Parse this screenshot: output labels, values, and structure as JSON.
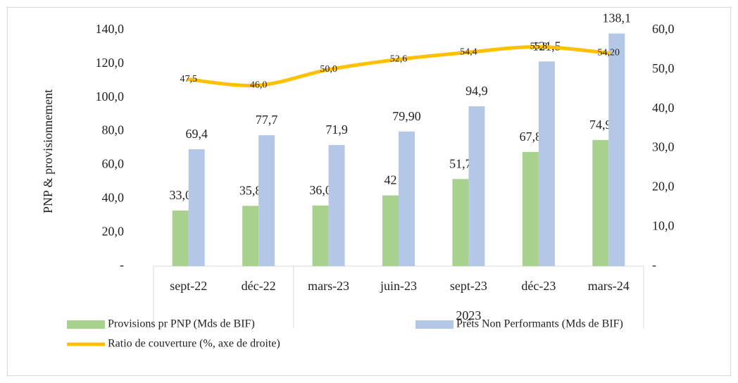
{
  "chart_data": {
    "type": "bar",
    "y_label": "PNP & provisionnement",
    "categories": [
      "sept-22",
      "déc-22",
      "mars-23",
      "juin-23",
      "sept-23",
      "déc-23",
      "mars-24"
    ],
    "group_labels": [
      null,
      null,
      "2023",
      "2023",
      "2023",
      "2023",
      "2023"
    ],
    "ylim": [
      0,
      140
    ],
    "yticks": [
      {
        "value": 0,
        "label": "-"
      },
      {
        "value": 20,
        "label": "20,0"
      },
      {
        "value": 40,
        "label": "40,0"
      },
      {
        "value": 60,
        "label": "60,0"
      },
      {
        "value": 80,
        "label": "80,0"
      },
      {
        "value": 100,
        "label": "100,0"
      },
      {
        "value": 120,
        "label": "120,0"
      },
      {
        "value": 140,
        "label": "140,0"
      }
    ],
    "y2lim": [
      0,
      60
    ],
    "y2ticks": [
      {
        "value": 0,
        "label": "-"
      },
      {
        "value": 10,
        "label": "10,0"
      },
      {
        "value": 20,
        "label": "20,0"
      },
      {
        "value": 30,
        "label": "30,0"
      },
      {
        "value": 40,
        "label": "40,0"
      },
      {
        "value": 50,
        "label": "50,0"
      },
      {
        "value": 60,
        "label": "60,0"
      }
    ],
    "legend": "bottom",
    "series": [
      {
        "name": "Provisions pr PNP (Mds de BIF)",
        "type": "bar",
        "color": "#a9d18e",
        "values": [
          33.0,
          35.8,
          36.0,
          42,
          51.7,
          67.8,
          74.9
        ],
        "value_labels": [
          "33,0",
          "35,8",
          "36,0",
          "42",
          "51,7",
          "67,8",
          "74,9"
        ]
      },
      {
        "name": "Prêts Non Performants (Mds de BIF)",
        "type": "bar",
        "color": "#b4c7e7",
        "values": [
          69.4,
          77.7,
          71.9,
          79.9,
          94.9,
          121.5,
          138.1
        ],
        "value_labels": [
          "69,4",
          "77,7",
          "71,9",
          "79,90",
          "94,9",
          "121,5",
          "138,1"
        ]
      },
      {
        "name": "Ratio de couverture (%, axe de droite)",
        "type": "line",
        "axis": "y2",
        "color": "#ffc000",
        "values": [
          47.5,
          46.0,
          50.0,
          52.6,
          54.4,
          55.8,
          54.2
        ],
        "value_labels": [
          "47,5",
          "46,0",
          "50,0",
          "52,6",
          "54,4",
          "55,8",
          "54,20"
        ]
      }
    ]
  }
}
